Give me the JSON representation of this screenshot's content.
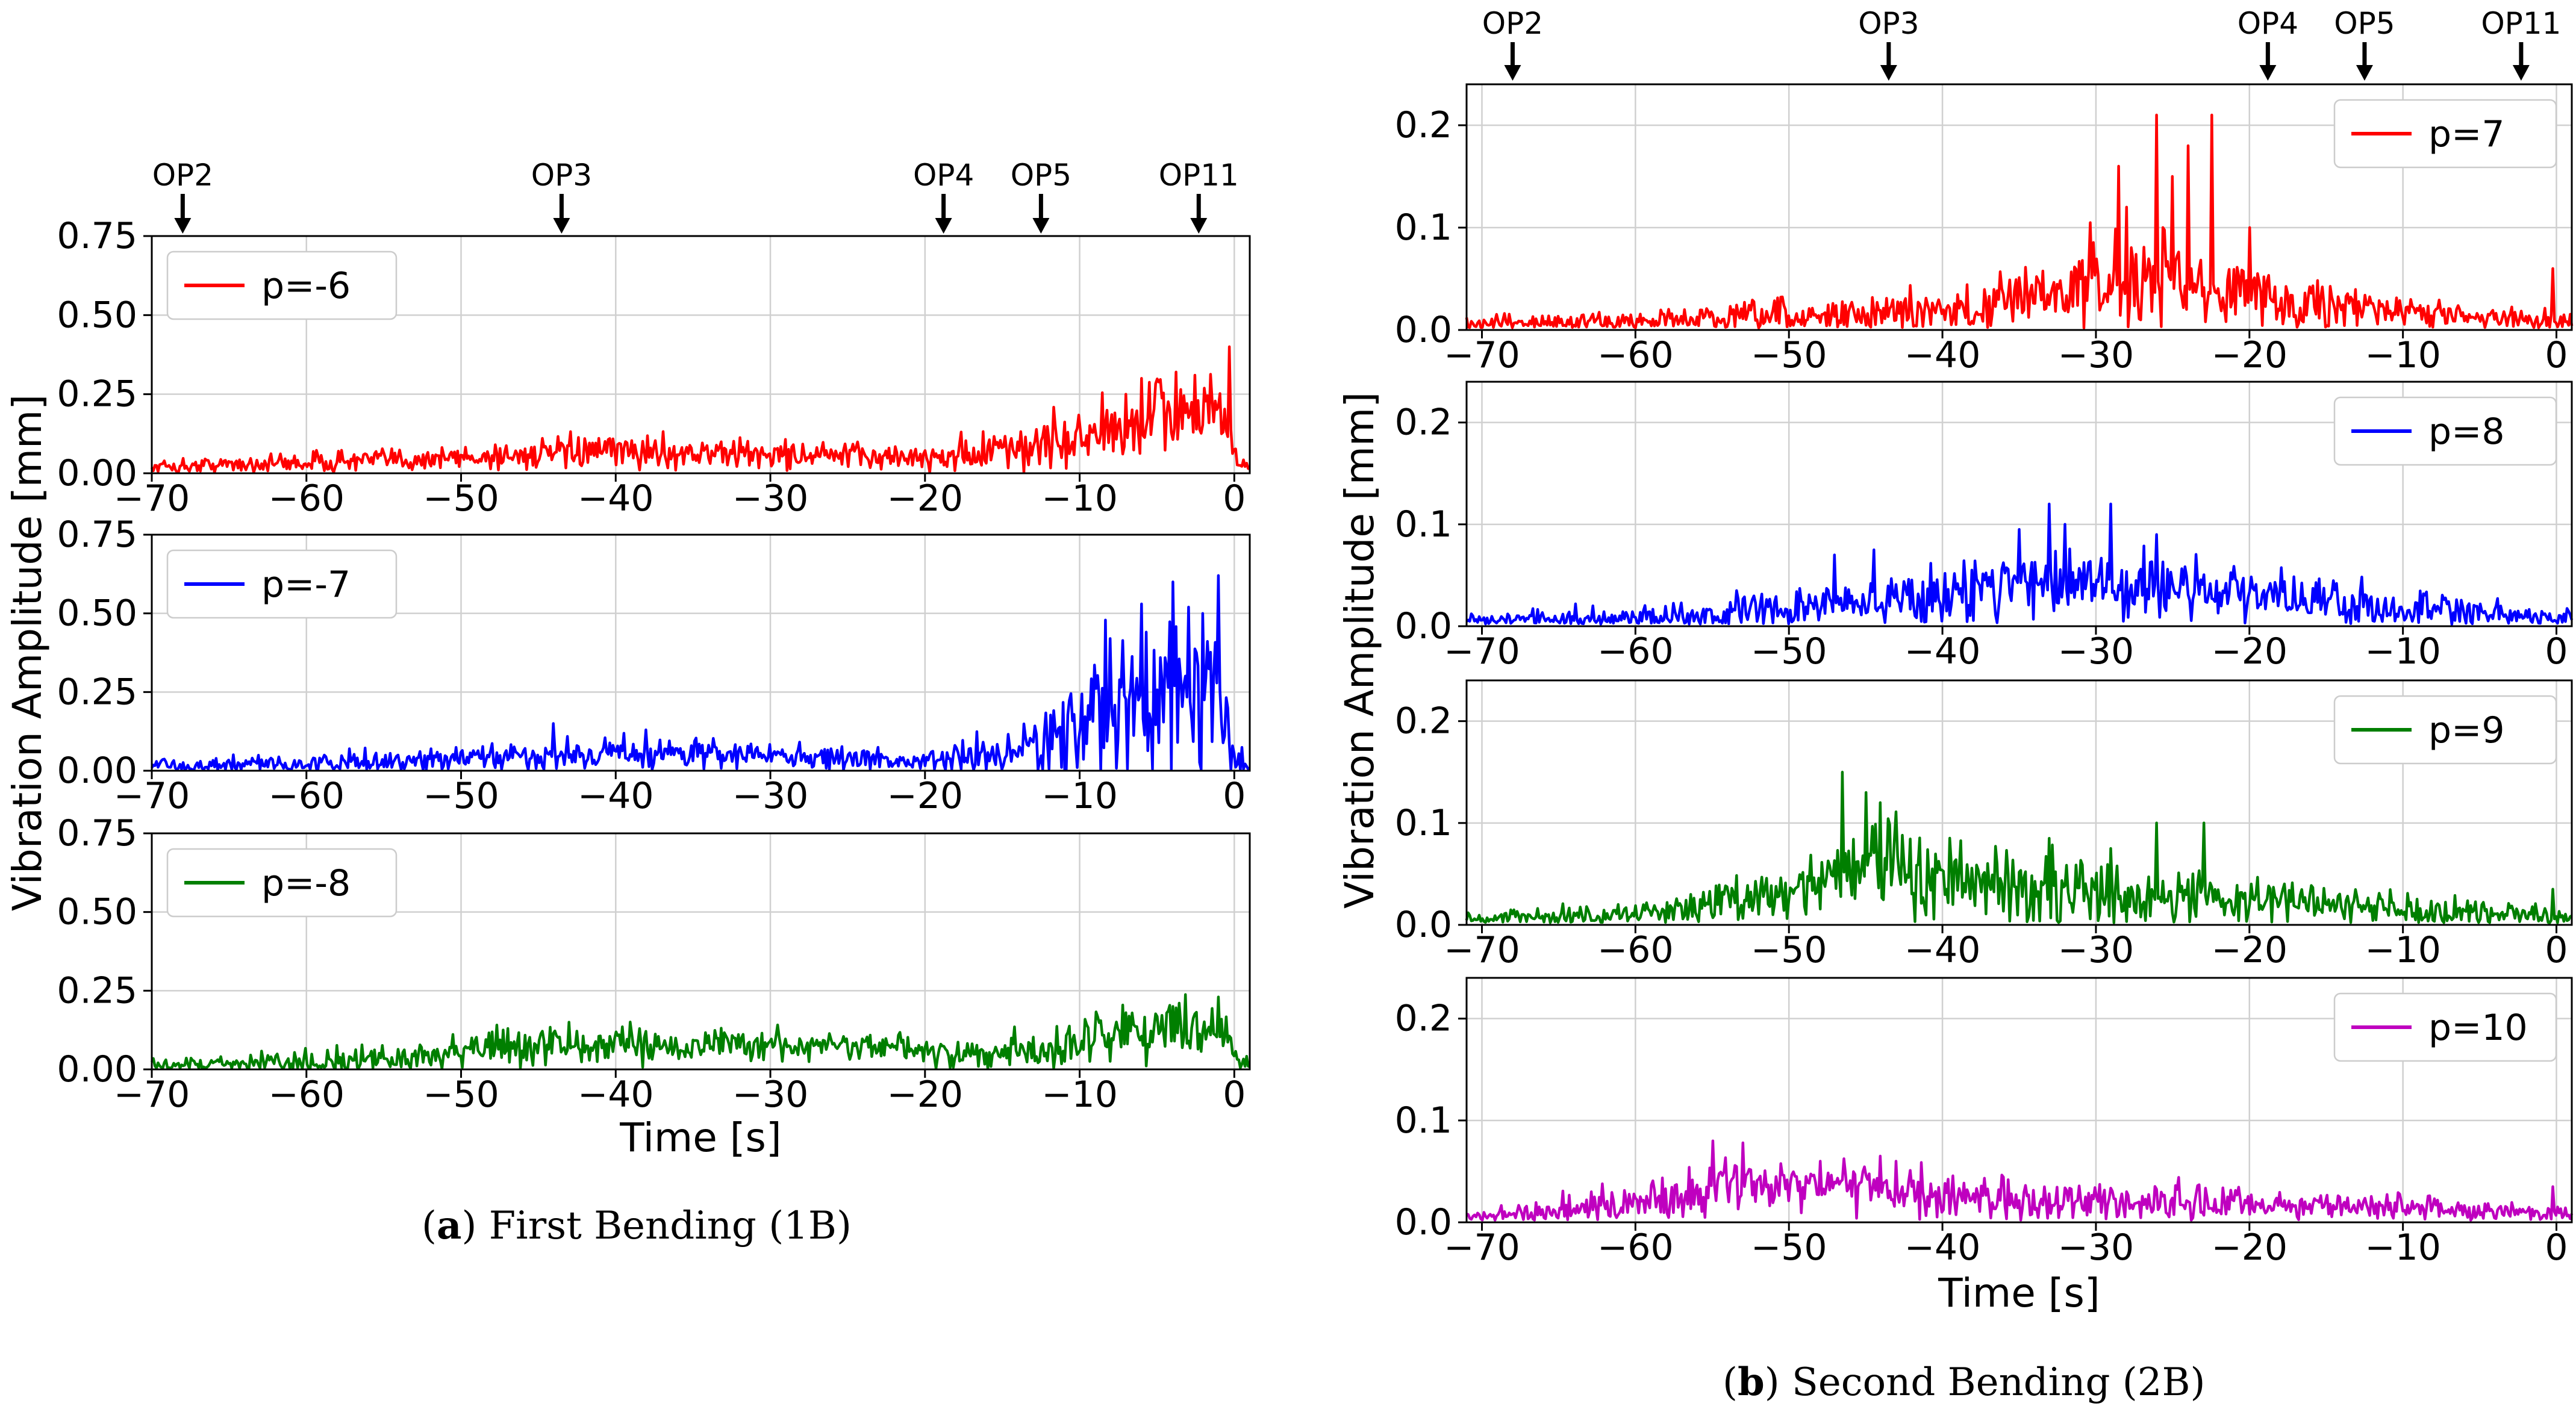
{
  "figure": {
    "caption_a": {
      "letter": "a",
      "text": "First Bending (1B)"
    },
    "caption_b": {
      "letter": "b",
      "text": "Second Bending (2B)"
    }
  },
  "chart_data": [
    {
      "id": "a",
      "type": "line",
      "title": "",
      "xlabel": "Time [s]",
      "ylabel": "Vibration Amplitude [mm]",
      "xlim": [
        -70,
        1
      ],
      "xticks": [
        -70,
        -60,
        -50,
        -40,
        -30,
        -20,
        -10,
        0
      ],
      "xtick_labels": [
        "−70",
        "−60",
        "−50",
        "−40",
        "−30",
        "−20",
        "−10",
        "0"
      ],
      "grid": true,
      "operating_points": [
        {
          "label": "OP2",
          "t": -68
        },
        {
          "label": "OP3",
          "t": -43.5
        },
        {
          "label": "OP4",
          "t": -18.8
        },
        {
          "label": "OP5",
          "t": -12.5
        },
        {
          "label": "OP11",
          "t": -2.3
        }
      ],
      "panels": [
        {
          "series_name": "p=-6",
          "color": "#ff0000",
          "ylim": [
            0,
            0.75
          ],
          "yticks": [
            0,
            0.25,
            0.5,
            0.75
          ],
          "ytick_labels": [
            "0.00",
            "0.25",
            "0.50",
            "0.75"
          ],
          "legend_position": "upper-left",
          "envelope": [
            [
              -70,
              0.02
            ],
            [
              -50,
              0.05
            ],
            [
              -40,
              0.07
            ],
            [
              -30,
              0.06
            ],
            [
              -20,
              0.05
            ],
            [
              -15,
              0.07
            ],
            [
              -10,
              0.11
            ],
            [
              -5,
              0.18
            ],
            [
              -1.2,
              0.2
            ],
            [
              0.5,
              0.02
            ],
            [
              1,
              0.01
            ]
          ],
          "noise": [
            [
              -70,
              0.012
            ],
            [
              -40,
              0.025
            ],
            [
              -20,
              0.02
            ],
            [
              -10,
              0.05
            ],
            [
              -5,
              0.08
            ],
            [
              -1,
              0.06
            ],
            [
              1,
              0.01
            ]
          ],
          "peaks": [
            [
              -0.3,
              0.4
            ],
            [
              -2.5,
              0.31
            ],
            [
              -3.8,
              0.32
            ],
            [
              -6,
              0.3
            ],
            [
              -7,
              0.25
            ]
          ]
        },
        {
          "series_name": "p=-7",
          "color": "#0000ff",
          "ylim": [
            0,
            0.75
          ],
          "yticks": [
            0,
            0.25,
            0.5,
            0.75
          ],
          "ytick_labels": [
            "0.00",
            "0.25",
            "0.50",
            "0.75"
          ],
          "legend_position": "upper-left",
          "envelope": [
            [
              -70,
              0.015
            ],
            [
              -60,
              0.02
            ],
            [
              -50,
              0.035
            ],
            [
              -40,
              0.06
            ],
            [
              -30,
              0.05
            ],
            [
              -20,
              0.03
            ],
            [
              -15,
              0.05
            ],
            [
              -11,
              0.12
            ],
            [
              -8,
              0.2
            ],
            [
              -5,
              0.25
            ],
            [
              -1.5,
              0.25
            ],
            [
              0.2,
              0.02
            ],
            [
              1,
              0.01
            ]
          ],
          "noise": [
            [
              -70,
              0.01
            ],
            [
              -40,
              0.025
            ],
            [
              -20,
              0.015
            ],
            [
              -11,
              0.07
            ],
            [
              -5,
              0.14
            ],
            [
              -1.5,
              0.12
            ],
            [
              1,
              0.01
            ]
          ],
          "peaks": [
            [
              -4,
              0.6
            ],
            [
              -1,
              0.62
            ],
            [
              -6,
              0.53
            ],
            [
              -3,
              0.52
            ],
            [
              -8,
              0.42
            ],
            [
              -2,
              0.5
            ],
            [
              -44,
              0.15
            ],
            [
              -38,
              0.13
            ]
          ]
        },
        {
          "series_name": "p=-8",
          "color": "#007f00",
          "ylim": [
            0,
            0.75
          ],
          "yticks": [
            0,
            0.25,
            0.5,
            0.75
          ],
          "ytick_labels": [
            "0.00",
            "0.25",
            "0.50",
            "0.75"
          ],
          "legend_position": "upper-left",
          "envelope": [
            [
              -70,
              0.015
            ],
            [
              -55,
              0.03
            ],
            [
              -48,
              0.07
            ],
            [
              -40,
              0.08
            ],
            [
              -30,
              0.08
            ],
            [
              -22,
              0.07
            ],
            [
              -18,
              0.04
            ],
            [
              -12,
              0.06
            ],
            [
              -8,
              0.12
            ],
            [
              -3,
              0.14
            ],
            [
              -1,
              0.15
            ],
            [
              0.5,
              0.02
            ],
            [
              1,
              0.01
            ]
          ],
          "noise": [
            [
              -70,
              0.01
            ],
            [
              -48,
              0.03
            ],
            [
              -20,
              0.02
            ],
            [
              -8,
              0.04
            ],
            [
              -1,
              0.04
            ],
            [
              1,
              0.01
            ]
          ],
          "peaks": [
            [
              -1,
              0.23
            ],
            [
              -4,
              0.2
            ],
            [
              -43,
              0.15
            ],
            [
              -47,
              0.13
            ],
            [
              -7,
              0.18
            ]
          ]
        }
      ]
    },
    {
      "id": "b",
      "type": "line",
      "title": "",
      "xlabel": "Time [s]",
      "ylabel": "Vibration Amplitude [mm]",
      "xlim": [
        -71,
        1
      ],
      "xticks": [
        -70,
        -60,
        -50,
        -40,
        -30,
        -20,
        -10,
        0
      ],
      "xtick_labels": [
        "−70",
        "−60",
        "−50",
        "−40",
        "−30",
        "−20",
        "−10",
        "0"
      ],
      "grid": true,
      "operating_points": [
        {
          "label": "OP2",
          "t": -68
        },
        {
          "label": "OP3",
          "t": -43.5
        },
        {
          "label": "OP4",
          "t": -18.8
        },
        {
          "label": "OP5",
          "t": -12.5
        },
        {
          "label": "OP11",
          "t": -2.3
        }
      ],
      "panels": [
        {
          "series_name": "p=7",
          "color": "#ff0000",
          "ylim": [
            0,
            0.24
          ],
          "yticks": [
            0,
            0.1,
            0.2
          ],
          "ytick_labels": [
            "0.0",
            "0.1",
            "0.2"
          ],
          "legend_position": "upper-right",
          "envelope": [
            [
              -71,
              0.005
            ],
            [
              -60,
              0.008
            ],
            [
              -50,
              0.012
            ],
            [
              -40,
              0.018
            ],
            [
              -35,
              0.03
            ],
            [
              -30,
              0.045
            ],
            [
              -25,
              0.05
            ],
            [
              -20,
              0.035
            ],
            [
              -15,
              0.025
            ],
            [
              -10,
              0.018
            ],
            [
              -3,
              0.012
            ],
            [
              1,
              0.008
            ]
          ],
          "noise": [
            [
              -71,
              0.004
            ],
            [
              -40,
              0.01
            ],
            [
              -30,
              0.025
            ],
            [
              -20,
              0.015
            ],
            [
              -10,
              0.008
            ],
            [
              1,
              0.005
            ]
          ],
          "peaks": [
            [
              -26,
              0.21
            ],
            [
              -25,
              0.15
            ],
            [
              -24,
              0.18
            ],
            [
              -22.5,
              0.21
            ],
            [
              -28.5,
              0.16
            ],
            [
              -28,
              0.12
            ],
            [
              -20,
              0.1
            ],
            [
              -0.2,
              0.06
            ]
          ]
        },
        {
          "series_name": "p=8",
          "color": "#0000ff",
          "ylim": [
            0,
            0.24
          ],
          "yticks": [
            0,
            0.1,
            0.2
          ],
          "ytick_labels": [
            "0.0",
            "0.1",
            "0.2"
          ],
          "legend_position": "upper-right",
          "envelope": [
            [
              -71,
              0.005
            ],
            [
              -60,
              0.007
            ],
            [
              -50,
              0.015
            ],
            [
              -45,
              0.025
            ],
            [
              -40,
              0.03
            ],
            [
              -35,
              0.045
            ],
            [
              -30,
              0.045
            ],
            [
              -25,
              0.04
            ],
            [
              -20,
              0.03
            ],
            [
              -15,
              0.025
            ],
            [
              -10,
              0.015
            ],
            [
              -3,
              0.01
            ],
            [
              1,
              0.006
            ]
          ],
          "noise": [
            [
              -71,
              0.003
            ],
            [
              -45,
              0.012
            ],
            [
              -30,
              0.02
            ],
            [
              -15,
              0.012
            ],
            [
              1,
              0.004
            ]
          ],
          "peaks": [
            [
              -33,
              0.12
            ],
            [
              -29,
              0.12
            ],
            [
              -32,
              0.1
            ],
            [
              -35,
              0.095
            ],
            [
              -26,
              0.09
            ],
            [
              -47,
              0.07
            ],
            [
              -44.5,
              0.075
            ]
          ]
        },
        {
          "series_name": "p=9",
          "color": "#007f00",
          "ylim": [
            0,
            0.24
          ],
          "yticks": [
            0,
            0.1,
            0.2
          ],
          "ytick_labels": [
            "0.0",
            "0.1",
            "0.2"
          ],
          "legend_position": "upper-right",
          "envelope": [
            [
              -71,
              0.005
            ],
            [
              -62,
              0.008
            ],
            [
              -55,
              0.02
            ],
            [
              -50,
              0.035
            ],
            [
              -47,
              0.05
            ],
            [
              -44,
              0.07
            ],
            [
              -40,
              0.04
            ],
            [
              -30,
              0.03
            ],
            [
              -25,
              0.03
            ],
            [
              -20,
              0.025
            ],
            [
              -10,
              0.015
            ],
            [
              -3,
              0.01
            ],
            [
              1,
              0.008
            ]
          ],
          "noise": [
            [
              -71,
              0.003
            ],
            [
              -50,
              0.012
            ],
            [
              -44,
              0.025
            ],
            [
              -30,
              0.015
            ],
            [
              -10,
              0.008
            ],
            [
              1,
              0.004
            ]
          ],
          "peaks": [
            [
              -46.5,
              0.15
            ],
            [
              -45,
              0.13
            ],
            [
              -44,
              0.12
            ],
            [
              -26,
              0.1
            ],
            [
              -23,
              0.1
            ],
            [
              -33,
              0.085
            ],
            [
              -29,
              0.075
            ],
            [
              -0.2,
              0.035
            ]
          ]
        },
        {
          "series_name": "p=10",
          "color": "#bf00bf",
          "ylim": [
            0,
            0.24
          ],
          "yticks": [
            0,
            0.1,
            0.2
          ],
          "ytick_labels": [
            "0.0",
            "0.1",
            "0.2"
          ],
          "legend_position": "upper-right",
          "envelope": [
            [
              -71,
              0.005
            ],
            [
              -62,
              0.012
            ],
            [
              -57,
              0.025
            ],
            [
              -55,
              0.04
            ],
            [
              -50,
              0.04
            ],
            [
              -45,
              0.035
            ],
            [
              -40,
              0.025
            ],
            [
              -30,
              0.02
            ],
            [
              -20,
              0.018
            ],
            [
              -10,
              0.015
            ],
            [
              -3,
              0.01
            ],
            [
              1,
              0.008
            ]
          ],
          "noise": [
            [
              -71,
              0.003
            ],
            [
              -55,
              0.015
            ],
            [
              -45,
              0.012
            ],
            [
              -20,
              0.008
            ],
            [
              1,
              0.004
            ]
          ],
          "peaks": [
            [
              -55,
              0.08
            ],
            [
              -53,
              0.078
            ],
            [
              -44,
              0.065
            ],
            [
              -43,
              0.06
            ],
            [
              -48,
              0.06
            ],
            [
              -0.2,
              0.035
            ]
          ]
        }
      ]
    }
  ]
}
